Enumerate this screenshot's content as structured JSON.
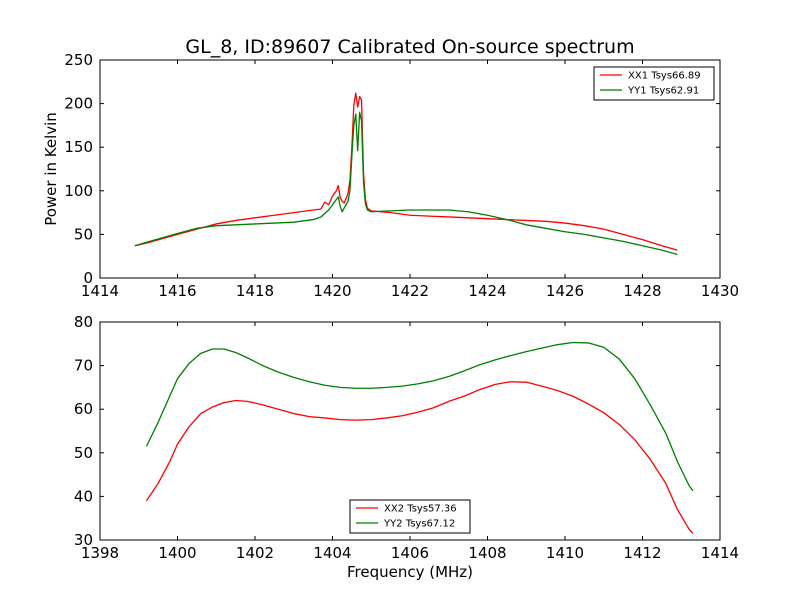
{
  "figure": {
    "title": "GL_8, ID:89607 Calibrated On-source spectrum"
  },
  "chart_data": [
    {
      "type": "line",
      "title": "GL_8, ID:89607 Calibrated On-source spectrum",
      "xlabel": "",
      "ylabel": "Power in Kelvin",
      "xlim": [
        1414,
        1430
      ],
      "ylim": [
        0,
        250
      ],
      "xticks": [
        1414,
        1416,
        1418,
        1420,
        1422,
        1424,
        1426,
        1428,
        1430
      ],
      "yticks": [
        0,
        50,
        100,
        150,
        200,
        250
      ],
      "legend_position": "top-right",
      "grid": false,
      "series": [
        {
          "name": "XX1 Tsys66.89",
          "color": "#ff0000",
          "points": [
            [
              1414.9,
              37
            ],
            [
              1415.2,
              40
            ],
            [
              1415.6,
              45
            ],
            [
              1416.0,
              50
            ],
            [
              1416.5,
              56
            ],
            [
              1417.0,
              62
            ],
            [
              1417.5,
              66
            ],
            [
              1418.0,
              69
            ],
            [
              1418.5,
              72
            ],
            [
              1419.0,
              75
            ],
            [
              1419.5,
              78
            ],
            [
              1419.7,
              79
            ],
            [
              1419.8,
              87
            ],
            [
              1419.9,
              84
            ],
            [
              1420.0,
              94
            ],
            [
              1420.1,
              100
            ],
            [
              1420.15,
              106
            ],
            [
              1420.2,
              92
            ],
            [
              1420.25,
              88
            ],
            [
              1420.3,
              86
            ],
            [
              1420.35,
              91
            ],
            [
              1420.4,
              97
            ],
            [
              1420.45,
              112
            ],
            [
              1420.5,
              150
            ],
            [
              1420.55,
              198
            ],
            [
              1420.6,
              212
            ],
            [
              1420.65,
              196
            ],
            [
              1420.7,
              208
            ],
            [
              1420.75,
              204
            ],
            [
              1420.8,
              120
            ],
            [
              1420.85,
              90
            ],
            [
              1420.9,
              80
            ],
            [
              1421.0,
              77
            ],
            [
              1421.5,
              75
            ],
            [
              1422.0,
              72
            ],
            [
              1422.5,
              71
            ],
            [
              1423.0,
              70
            ],
            [
              1423.5,
              69
            ],
            [
              1424.0,
              68
            ],
            [
              1424.5,
              67
            ],
            [
              1425.0,
              66
            ],
            [
              1425.5,
              65
            ],
            [
              1426.0,
              63
            ],
            [
              1426.5,
              60
            ],
            [
              1427.0,
              56
            ],
            [
              1427.5,
              50
            ],
            [
              1428.0,
              44
            ],
            [
              1428.5,
              37
            ],
            [
              1428.9,
              32
            ]
          ]
        },
        {
          "name": "YY1 Tsys62.91",
          "color": "#007f00",
          "points": [
            [
              1414.9,
              37
            ],
            [
              1415.2,
              41
            ],
            [
              1415.6,
              46
            ],
            [
              1416.0,
              51
            ],
            [
              1416.5,
              57
            ],
            [
              1417.0,
              60
            ],
            [
              1417.5,
              61
            ],
            [
              1418.0,
              62
            ],
            [
              1418.5,
              63
            ],
            [
              1419.0,
              64
            ],
            [
              1419.5,
              67
            ],
            [
              1419.7,
              70
            ],
            [
              1419.8,
              74
            ],
            [
              1419.9,
              78
            ],
            [
              1420.0,
              84
            ],
            [
              1420.1,
              90
            ],
            [
              1420.15,
              93
            ],
            [
              1420.2,
              82
            ],
            [
              1420.25,
              76
            ],
            [
              1420.3,
              80
            ],
            [
              1420.35,
              84
            ],
            [
              1420.4,
              88
            ],
            [
              1420.45,
              100
            ],
            [
              1420.5,
              140
            ],
            [
              1420.55,
              175
            ],
            [
              1420.6,
              188
            ],
            [
              1420.65,
              146
            ],
            [
              1420.7,
              190
            ],
            [
              1420.75,
              180
            ],
            [
              1420.8,
              110
            ],
            [
              1420.85,
              85
            ],
            [
              1420.9,
              78
            ],
            [
              1421.0,
              76
            ],
            [
              1421.5,
              77
            ],
            [
              1422.0,
              78
            ],
            [
              1422.5,
              78
            ],
            [
              1423.0,
              78
            ],
            [
              1423.5,
              76
            ],
            [
              1424.0,
              72
            ],
            [
              1424.5,
              67
            ],
            [
              1425.0,
              61
            ],
            [
              1425.5,
              57
            ],
            [
              1426.0,
              53
            ],
            [
              1426.5,
              50
            ],
            [
              1427.0,
              46
            ],
            [
              1427.5,
              42
            ],
            [
              1428.0,
              37
            ],
            [
              1428.5,
              32
            ],
            [
              1428.9,
              27
            ]
          ]
        }
      ]
    },
    {
      "type": "line",
      "title": "",
      "xlabel": "Frequency (MHz)",
      "ylabel": "",
      "xlim": [
        1398,
        1414
      ],
      "ylim": [
        30,
        80
      ],
      "xticks": [
        1398,
        1400,
        1402,
        1404,
        1406,
        1408,
        1410,
        1412,
        1414
      ],
      "yticks": [
        30,
        40,
        50,
        60,
        70,
        80
      ],
      "legend_position": "bottom-center",
      "grid": false,
      "series": [
        {
          "name": "XX2 Tsys57.36",
          "color": "#ff0000",
          "points": [
            [
              1399.2,
              39
            ],
            [
              1399.5,
              43
            ],
            [
              1399.8,
              48
            ],
            [
              1400.0,
              52
            ],
            [
              1400.3,
              56
            ],
            [
              1400.6,
              59
            ],
            [
              1400.9,
              60.5
            ],
            [
              1401.2,
              61.5
            ],
            [
              1401.5,
              62
            ],
            [
              1401.8,
              61.8
            ],
            [
              1402.2,
              61
            ],
            [
              1402.6,
              60
            ],
            [
              1403.0,
              59
            ],
            [
              1403.4,
              58.3
            ],
            [
              1403.8,
              58
            ],
            [
              1404.2,
              57.6
            ],
            [
              1404.6,
              57.5
            ],
            [
              1405.0,
              57.6
            ],
            [
              1405.4,
              58
            ],
            [
              1405.8,
              58.5
            ],
            [
              1406.2,
              59.3
            ],
            [
              1406.6,
              60.3
            ],
            [
              1407.0,
              61.8
            ],
            [
              1407.4,
              63
            ],
            [
              1407.8,
              64.5
            ],
            [
              1408.2,
              65.7
            ],
            [
              1408.6,
              66.3
            ],
            [
              1409.0,
              66.2
            ],
            [
              1409.4,
              65.3
            ],
            [
              1409.8,
              64.3
            ],
            [
              1410.2,
              63
            ],
            [
              1410.6,
              61.2
            ],
            [
              1411.0,
              59.2
            ],
            [
              1411.4,
              56.5
            ],
            [
              1411.8,
              53
            ],
            [
              1412.2,
              48.5
            ],
            [
              1412.6,
              43
            ],
            [
              1412.9,
              37
            ],
            [
              1413.2,
              32.5
            ],
            [
              1413.3,
              31.5
            ]
          ]
        },
        {
          "name": "YY2 Tsys67.12",
          "color": "#007f00",
          "points": [
            [
              1399.2,
              51.5
            ],
            [
              1399.5,
              57
            ],
            [
              1399.8,
              63
            ],
            [
              1400.0,
              67
            ],
            [
              1400.3,
              70.5
            ],
            [
              1400.6,
              72.8
            ],
            [
              1400.9,
              73.8
            ],
            [
              1401.2,
              73.8
            ],
            [
              1401.5,
              73
            ],
            [
              1401.8,
              71.8
            ],
            [
              1402.2,
              70
            ],
            [
              1402.6,
              68.5
            ],
            [
              1403.0,
              67.3
            ],
            [
              1403.4,
              66.3
            ],
            [
              1403.8,
              65.5
            ],
            [
              1404.2,
              65
            ],
            [
              1404.6,
              64.8
            ],
            [
              1405.0,
              64.8
            ],
            [
              1405.4,
              65
            ],
            [
              1405.8,
              65.3
            ],
            [
              1406.2,
              65.8
            ],
            [
              1406.6,
              66.5
            ],
            [
              1407.0,
              67.5
            ],
            [
              1407.4,
              68.8
            ],
            [
              1407.8,
              70.2
            ],
            [
              1408.2,
              71.3
            ],
            [
              1408.6,
              72.3
            ],
            [
              1409.0,
              73.2
            ],
            [
              1409.4,
              74
            ],
            [
              1409.8,
              74.8
            ],
            [
              1410.2,
              75.3
            ],
            [
              1410.6,
              75.2
            ],
            [
              1411.0,
              74.2
            ],
            [
              1411.4,
              71.5
            ],
            [
              1411.8,
              67
            ],
            [
              1412.2,
              61
            ],
            [
              1412.6,
              54.5
            ],
            [
              1412.9,
              48
            ],
            [
              1413.2,
              42.5
            ],
            [
              1413.3,
              41.3
            ]
          ]
        }
      ]
    }
  ]
}
